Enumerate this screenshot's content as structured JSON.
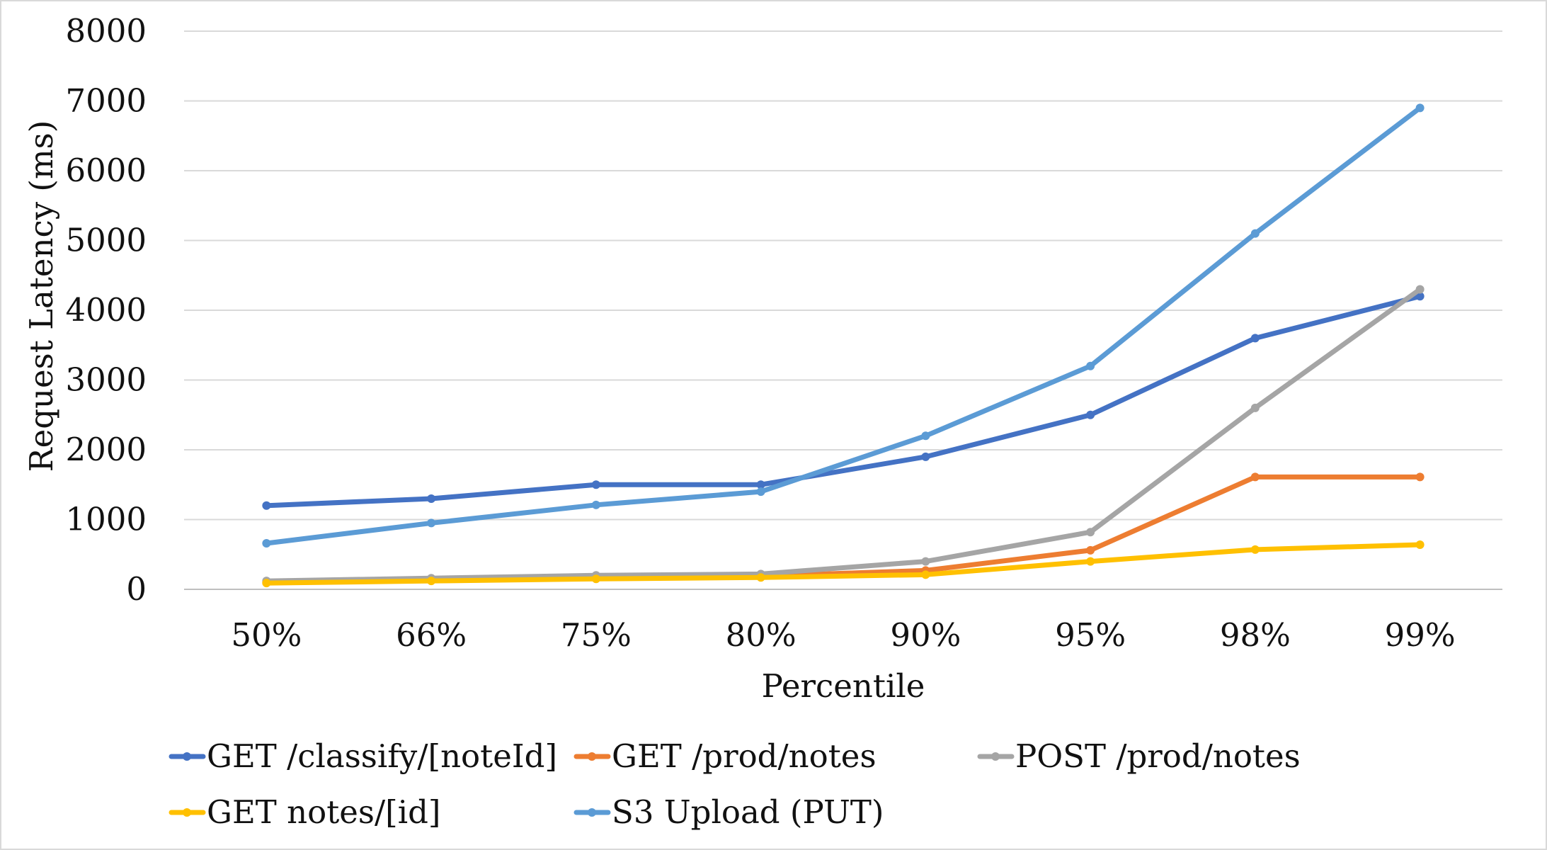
{
  "chart_data": {
    "type": "line",
    "title": "",
    "xlabel": "Percentile",
    "ylabel": "Request Latency (ms)",
    "categories": [
      "50%",
      "66%",
      "75%",
      "80%",
      "90%",
      "95%",
      "98%",
      "99%"
    ],
    "ylim": [
      0,
      8000
    ],
    "yticks": [
      "0",
      "1000",
      "2000",
      "3000",
      "4000",
      "5000",
      "6000",
      "7000",
      "8000"
    ],
    "grid": true,
    "legend_position": "bottom",
    "series": [
      {
        "name": "GET /classify/[noteId]",
        "color": "#4472C4",
        "values": [
          1200,
          1300,
          1500,
          1500,
          1900,
          2500,
          3600,
          4200
        ]
      },
      {
        "name": "GET /prod/notes",
        "color": "#ED7D31",
        "values": [
          100,
          130,
          170,
          190,
          270,
          560,
          1610,
          1610
        ]
      },
      {
        "name": "POST /prod/notes",
        "color": "#A5A5A5",
        "values": [
          120,
          160,
          200,
          220,
          400,
          820,
          2600,
          4300
        ]
      },
      {
        "name": "GET notes/[id]",
        "color": "#FFC000",
        "values": [
          90,
          120,
          150,
          170,
          210,
          400,
          570,
          640
        ]
      },
      {
        "name": "S3 Upload (PUT)",
        "color": "#5B9BD5",
        "values": [
          660,
          950,
          1210,
          1400,
          2200,
          3200,
          5100,
          6900
        ]
      }
    ]
  }
}
